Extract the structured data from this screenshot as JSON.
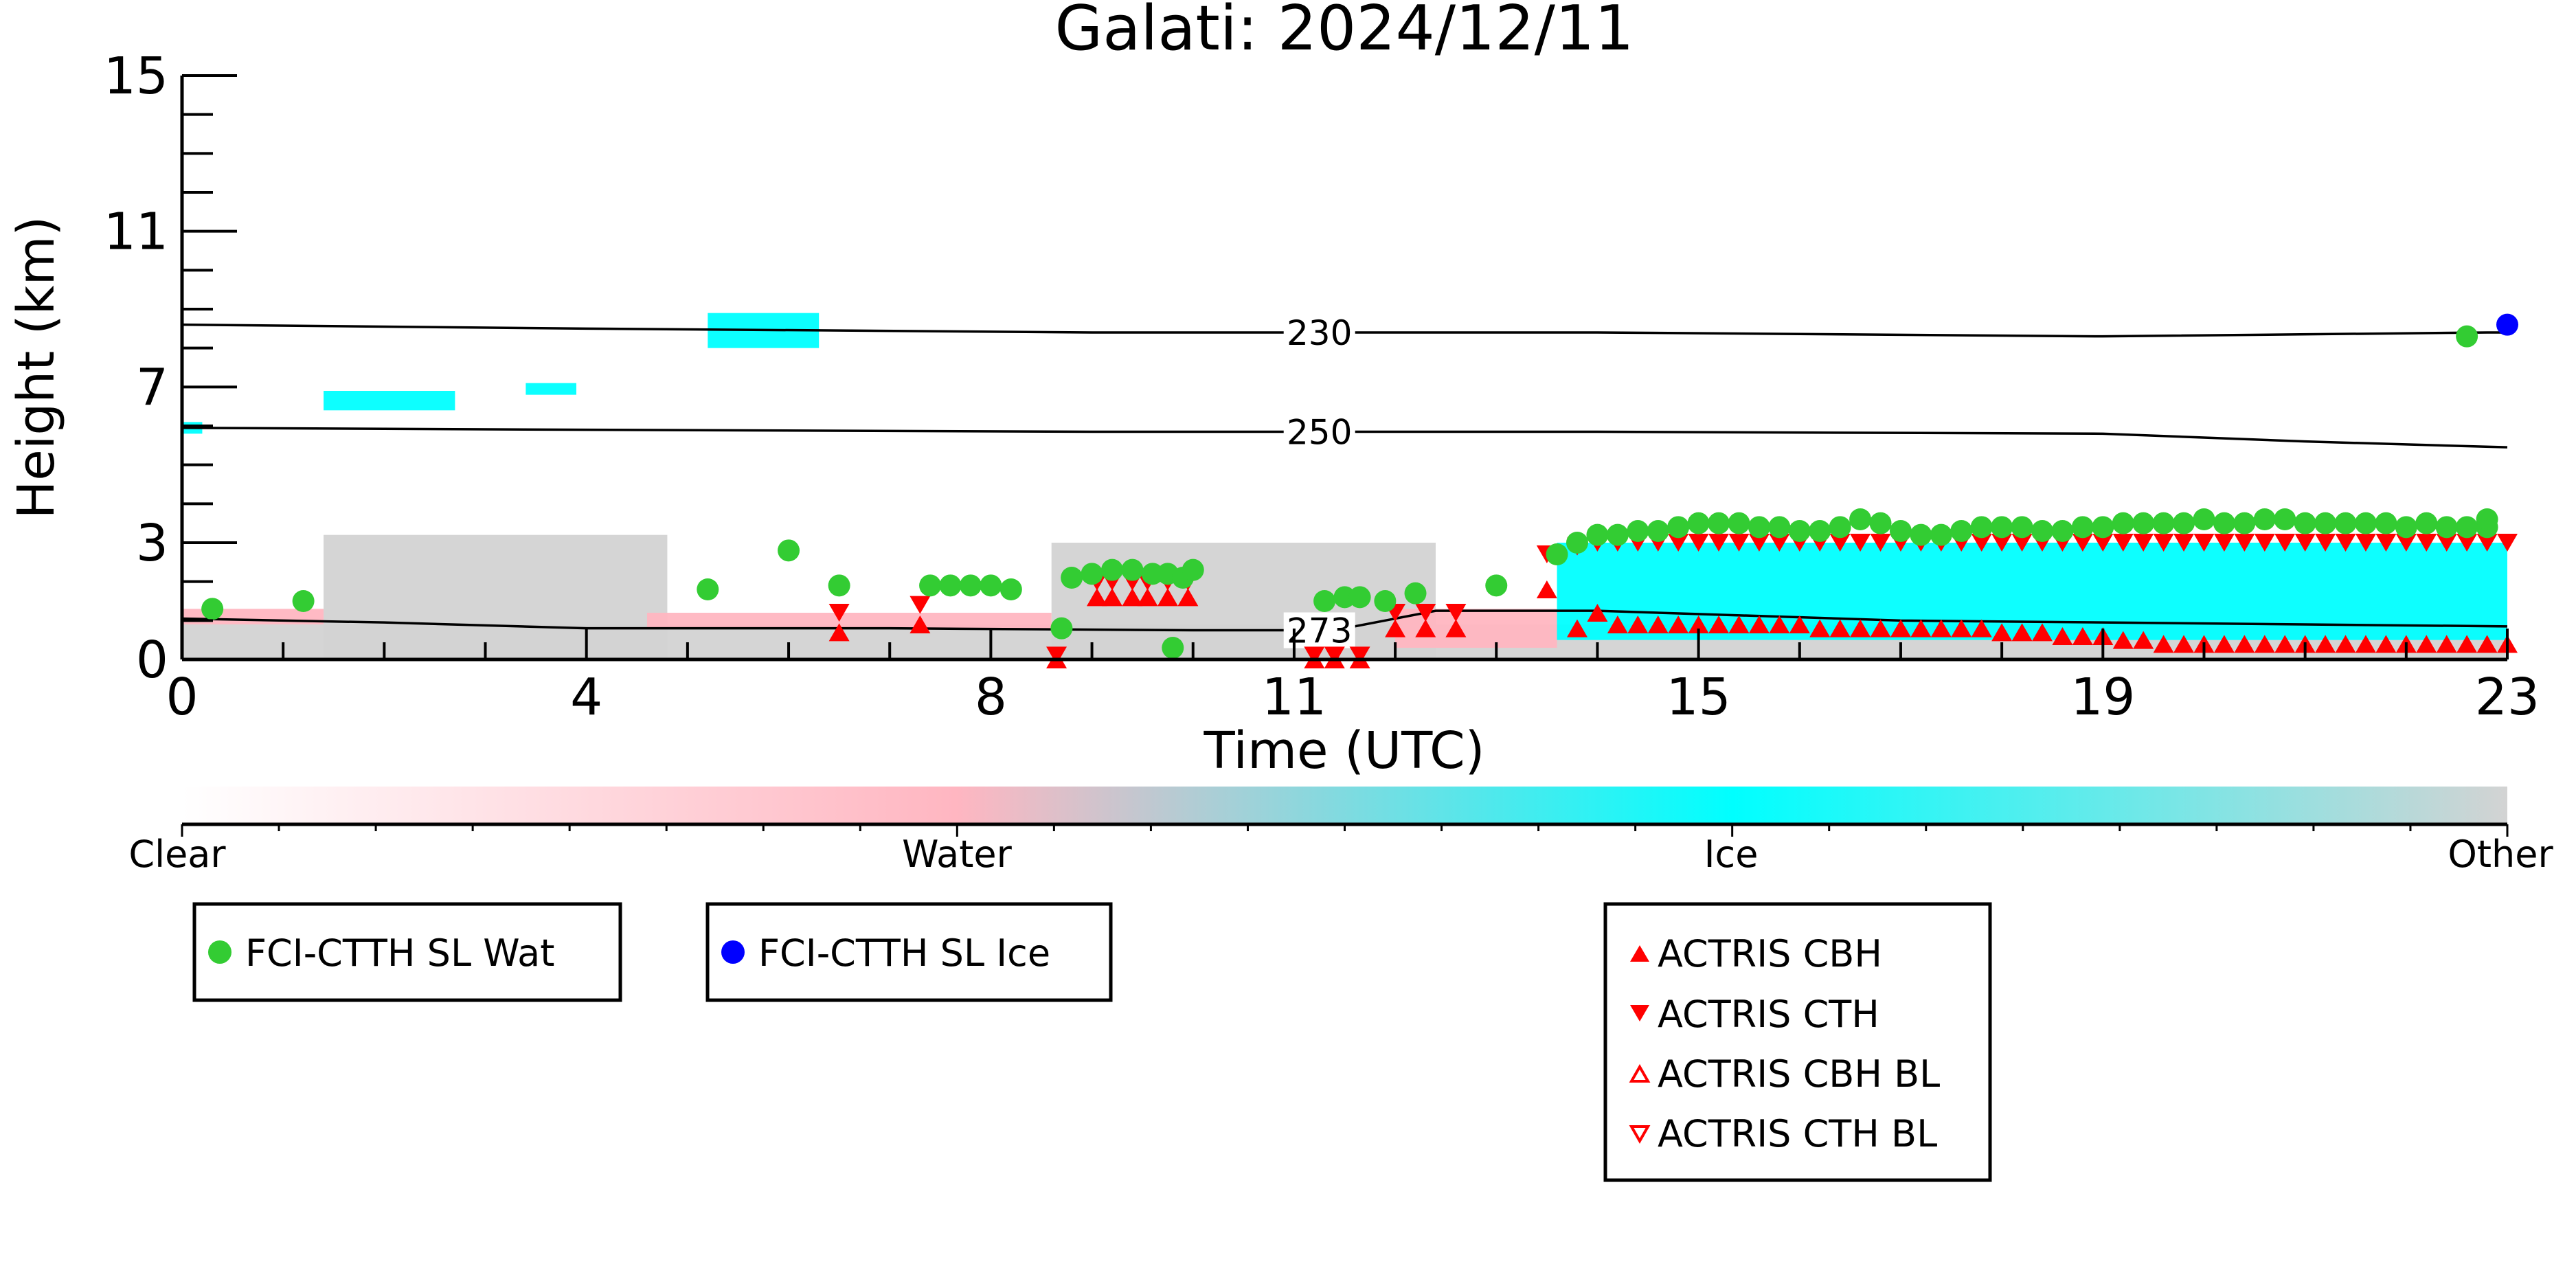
{
  "chart_data": {
    "type": "scatter",
    "title": "Galati: 2024/12/11",
    "xlabel": "Time (UTC)",
    "ylabel": "Height (km)",
    "xlim": [
      0,
      23
    ],
    "ylim": [
      0,
      15
    ],
    "x_ticks": [
      0,
      4,
      8,
      11,
      15,
      19,
      23
    ],
    "y_ticks": [
      0,
      3,
      7,
      11,
      15
    ],
    "colorbar": {
      "labels": [
        "Clear",
        "Water",
        "Ice",
        "Other"
      ],
      "colors": [
        "#ffffff",
        "#ffb6c1",
        "#00ffff",
        "#d3d3d3"
      ]
    },
    "isotherms": [
      {
        "label": "230",
        "x": [
          0,
          4,
          9,
          14,
          19,
          22.8,
          23
        ],
        "y": [
          8.6,
          8.5,
          8.4,
          8.4,
          8.3,
          8.4,
          8.4
        ]
      },
      {
        "label": "250",
        "x": [
          0,
          4,
          9,
          14,
          19,
          21,
          23
        ],
        "y": [
          5.95,
          5.9,
          5.85,
          5.85,
          5.8,
          5.6,
          5.45
        ]
      },
      {
        "label": "273",
        "x": [
          0,
          2,
          4,
          7,
          10,
          11.4,
          12.4,
          14,
          17,
          19,
          21,
          23
        ],
        "y": [
          1.05,
          0.95,
          0.8,
          0.8,
          0.75,
          0.75,
          1.25,
          1.25,
          1.0,
          0.95,
          0.9,
          0.85
        ]
      }
    ],
    "series": [
      {
        "name": "FCI-CTTH SL Wat",
        "marker": "circle",
        "color": "#33cc33",
        "x": [
          0.3,
          1.2,
          5.2,
          6.0,
          6.5,
          7.4,
          7.6,
          7.8,
          8.0,
          8.2,
          8.7,
          8.8,
          9.0,
          9.2,
          9.4,
          9.6,
          9.75,
          9.9,
          10.0,
          9.8,
          11.3,
          11.5,
          11.65,
          11.9,
          12.2,
          13.0,
          13.6,
          13.8,
          14.0,
          14.2,
          14.4,
          14.6,
          14.8,
          15.0,
          15.2,
          15.4,
          15.6,
          15.8,
          16.0,
          16.2,
          16.4,
          16.6,
          16.8,
          17.0,
          17.2,
          17.4,
          17.6,
          17.8,
          18.0,
          18.2,
          18.4,
          18.6,
          18.8,
          19.0,
          19.2,
          19.4,
          19.6,
          19.8,
          20.0,
          20.2,
          20.4,
          20.6,
          20.8,
          21.0,
          21.2,
          21.4,
          21.6,
          21.8,
          22.0,
          22.2,
          22.4,
          22.6,
          22.8,
          22.8
        ],
        "y": [
          1.3,
          1.5,
          1.8,
          2.8,
          1.9,
          1.9,
          1.9,
          1.9,
          1.9,
          1.8,
          0.8,
          2.1,
          2.2,
          2.3,
          2.3,
          2.2,
          2.2,
          2.1,
          2.3,
          0.3,
          1.5,
          1.6,
          1.6,
          1.5,
          1.7,
          1.9,
          2.7,
          3.0,
          3.2,
          3.2,
          3.3,
          3.3,
          3.4,
          3.5,
          3.5,
          3.5,
          3.4,
          3.4,
          3.3,
          3.3,
          3.4,
          3.6,
          3.5,
          3.3,
          3.2,
          3.2,
          3.3,
          3.4,
          3.4,
          3.4,
          3.3,
          3.3,
          3.4,
          3.4,
          3.5,
          3.5,
          3.5,
          3.5,
          3.6,
          3.5,
          3.5,
          3.6,
          3.6,
          3.5,
          3.5,
          3.5,
          3.5,
          3.5,
          3.4,
          3.5,
          3.4,
          3.4,
          3.4,
          3.6
        ],
        "extra": {
          "x": [
            22.6
          ],
          "y": [
            8.3
          ]
        }
      },
      {
        "name": "FCI-CTTH SL Ice",
        "marker": "circle",
        "color": "#0000ff",
        "x": [
          23.0
        ],
        "y": [
          8.6
        ]
      },
      {
        "name": "ACTRIS CBH",
        "marker": "triangle-up",
        "color": "#ff0000",
        "x": [
          6.5,
          7.3,
          8.65,
          9.05,
          9.2,
          9.4,
          9.55,
          9.75,
          9.95,
          11.2,
          11.4,
          11.65,
          12.0,
          12.3,
          12.6,
          13.5,
          13.8,
          14.0,
          14.2,
          14.4,
          14.6,
          14.8,
          15.0,
          15.2,
          15.4,
          15.6,
          15.8,
          16.0,
          16.2,
          16.4,
          16.6,
          16.8,
          17.0,
          17.2,
          17.4,
          17.6,
          17.8,
          18.0,
          18.2,
          18.4,
          18.6,
          18.8,
          19.0,
          19.2,
          19.4,
          19.6,
          19.8,
          20.0,
          20.2,
          20.4,
          20.6,
          20.8,
          21.0,
          21.2,
          21.4,
          21.6,
          21.8,
          22.0,
          22.2,
          22.4,
          22.6,
          22.8,
          23.0
        ],
        "y": [
          0.7,
          0.9,
          0.0,
          1.6,
          1.6,
          1.6,
          1.6,
          1.6,
          1.6,
          0.0,
          0.0,
          0.0,
          0.8,
          0.8,
          0.8,
          1.8,
          0.8,
          1.2,
          0.9,
          0.9,
          0.9,
          0.9,
          0.9,
          0.9,
          0.9,
          0.9,
          0.9,
          0.9,
          0.8,
          0.8,
          0.8,
          0.8,
          0.8,
          0.8,
          0.8,
          0.8,
          0.8,
          0.7,
          0.7,
          0.7,
          0.6,
          0.6,
          0.6,
          0.5,
          0.5,
          0.4,
          0.4,
          0.4,
          0.4,
          0.4,
          0.4,
          0.4,
          0.4,
          0.4,
          0.4,
          0.4,
          0.4,
          0.4,
          0.4,
          0.4,
          0.4,
          0.4,
          0.4
        ]
      },
      {
        "name": "ACTRIS CTH",
        "marker": "triangle-down",
        "color": "#ff0000",
        "x": [
          6.5,
          7.3,
          8.65,
          9.05,
          9.2,
          9.4,
          9.55,
          9.75,
          9.95,
          11.2,
          11.4,
          11.65,
          12.0,
          12.3,
          12.6,
          13.5,
          13.8,
          14.0,
          14.2,
          14.4,
          14.6,
          14.8,
          15.0,
          15.2,
          15.4,
          15.6,
          15.8,
          16.0,
          16.2,
          16.4,
          16.6,
          16.8,
          17.0,
          17.2,
          17.4,
          17.6,
          17.8,
          18.0,
          18.2,
          18.4,
          18.6,
          18.8,
          19.0,
          19.2,
          19.4,
          19.6,
          19.8,
          20.0,
          20.2,
          20.4,
          20.6,
          20.8,
          21.0,
          21.2,
          21.4,
          21.6,
          21.8,
          22.0,
          22.2,
          22.4,
          22.6,
          22.8,
          23.0
        ],
        "y": [
          1.2,
          1.4,
          0.1,
          2.0,
          2.0,
          2.0,
          2.0,
          2.0,
          2.0,
          0.1,
          0.1,
          0.1,
          1.2,
          1.2,
          1.2,
          2.7,
          2.9,
          3.0,
          3.0,
          3.0,
          3.0,
          3.0,
          3.0,
          3.0,
          3.0,
          3.0,
          3.0,
          3.0,
          3.0,
          3.0,
          3.0,
          3.0,
          3.0,
          3.0,
          3.0,
          3.0,
          3.0,
          3.0,
          3.0,
          3.0,
          3.0,
          3.0,
          3.0,
          3.0,
          3.0,
          3.0,
          3.0,
          3.0,
          3.0,
          3.0,
          3.0,
          3.0,
          3.0,
          3.0,
          3.0,
          3.0,
          3.0,
          3.0,
          3.0,
          3.0,
          3.0,
          3.0,
          3.0
        ]
      },
      {
        "name": "ACTRIS CBH BL",
        "marker": "triangle-up-open",
        "color": "#ff0000",
        "x": [],
        "y": []
      },
      {
        "name": "ACTRIS CTH BL",
        "marker": "triangle-down-open",
        "color": "#ff0000",
        "x": [],
        "y": []
      }
    ],
    "classification_regions": [
      {
        "class": "Other",
        "x0": 1.4,
        "x1": 4.8,
        "y0": 0.0,
        "y1": 3.2
      },
      {
        "class": "Other",
        "x0": 8.6,
        "x1": 12.4,
        "y0": 0.0,
        "y1": 3.0
      },
      {
        "class": "Other",
        "x0": 0.0,
        "x1": 23.0,
        "y0": 0.0,
        "y1": 0.9
      },
      {
        "class": "Water",
        "x0": 0.0,
        "x1": 1.4,
        "y0": 0.9,
        "y1": 1.3
      },
      {
        "class": "Water",
        "x0": 4.6,
        "x1": 8.6,
        "y0": 0.8,
        "y1": 1.2
      },
      {
        "class": "Water",
        "x0": 12.0,
        "x1": 13.6,
        "y0": 0.3,
        "y1": 1.3
      },
      {
        "class": "Ice",
        "x0": 13.6,
        "x1": 23.0,
        "y0": 0.5,
        "y1": 3.0
      },
      {
        "class": "Ice",
        "x0": 1.4,
        "x1": 2.7,
        "y0": 6.4,
        "y1": 6.9
      },
      {
        "class": "Ice",
        "x0": 3.4,
        "x1": 3.9,
        "y0": 6.8,
        "y1": 7.1
      },
      {
        "class": "Ice",
        "x0": 5.2,
        "x1": 6.3,
        "y0": 8.0,
        "y1": 8.9
      },
      {
        "class": "Ice",
        "x0": 0.0,
        "x1": 0.2,
        "y0": 5.8,
        "y1": 6.1
      }
    ],
    "legend": {
      "box1": [
        "FCI-CTTH SL Wat"
      ],
      "box2": [
        "FCI-CTTH SL Ice"
      ],
      "box3": [
        "ACTRIS CBH",
        "ACTRIS CTH",
        "ACTRIS CBH BL",
        "ACTRIS CTH BL"
      ]
    }
  }
}
